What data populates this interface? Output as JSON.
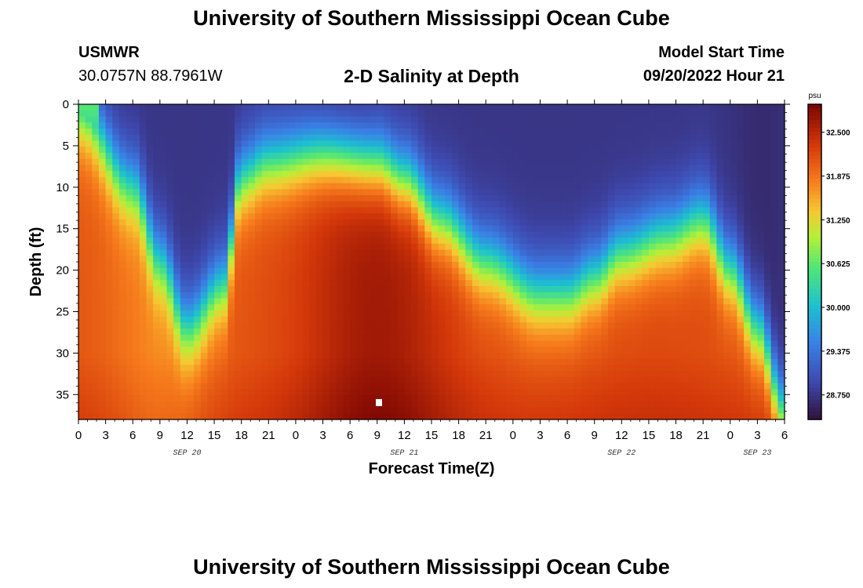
{
  "header": {
    "title": "University of Southern Mississippi Ocean Cube",
    "station": "USMWR",
    "coords": "30.0757N  88.7961W",
    "subtitle": "2-D Salinity at Depth",
    "start_label": "Model Start Time",
    "start_time": "09/20/2022 Hour 21"
  },
  "footer": {
    "title": "University of Southern Mississippi Ocean Cube"
  },
  "chart_data": {
    "type": "heatmap",
    "title": "2-D Salinity at Depth",
    "xlabel": "Forecast Time(Z)",
    "ylabel": "Depth (ft)",
    "xlim": [
      0,
      78
    ],
    "ylim": [
      0,
      38
    ],
    "x_tick_labels": [
      "0",
      "3",
      "6",
      "9",
      "12",
      "15",
      "18",
      "21",
      "0",
      "3",
      "6",
      "9",
      "12",
      "15",
      "18",
      "21",
      "0",
      "3",
      "6",
      "9",
      "12",
      "15",
      "18",
      "21",
      "0",
      "3",
      "6"
    ],
    "y_ticks": [
      0,
      5,
      10,
      15,
      20,
      25,
      30,
      35
    ],
    "date_labels": [
      {
        "label": "SEP 20",
        "hours": 12
      },
      {
        "label": "SEP 21",
        "hours": 36
      },
      {
        "label": "SEP 22",
        "hours": 60
      },
      {
        "label": "SEP 23",
        "hours": 75
      }
    ],
    "colorbar": {
      "unit": "psu",
      "ticks": [
        "32.500",
        "31.875",
        "31.250",
        "30.625",
        "30.000",
        "29.375",
        "28.750"
      ],
      "tick_values": [
        32.5,
        31.875,
        31.25,
        30.625,
        30.0,
        29.375,
        28.75
      ],
      "range": [
        28.4,
        32.9
      ]
    },
    "interface_depth_ft": [
      {
        "x": 0,
        "d": 1
      },
      {
        "x": 6,
        "d": 10
      },
      {
        "x": 9,
        "d": 19
      },
      {
        "x": 12,
        "d": 27
      },
      {
        "x": 16,
        "d": 22
      },
      {
        "x": 18,
        "d": 9
      },
      {
        "x": 21,
        "d": 7
      },
      {
        "x": 27,
        "d": 6
      },
      {
        "x": 33,
        "d": 7
      },
      {
        "x": 36,
        "d": 9
      },
      {
        "x": 40,
        "d": 14
      },
      {
        "x": 45,
        "d": 19
      },
      {
        "x": 51,
        "d": 23
      },
      {
        "x": 54,
        "d": 23
      },
      {
        "x": 57,
        "d": 21
      },
      {
        "x": 60,
        "d": 18
      },
      {
        "x": 65,
        "d": 16
      },
      {
        "x": 69,
        "d": 14
      },
      {
        "x": 72,
        "d": 20
      },
      {
        "x": 75,
        "d": 27
      },
      {
        "x": 78,
        "d": 37
      }
    ]
  }
}
